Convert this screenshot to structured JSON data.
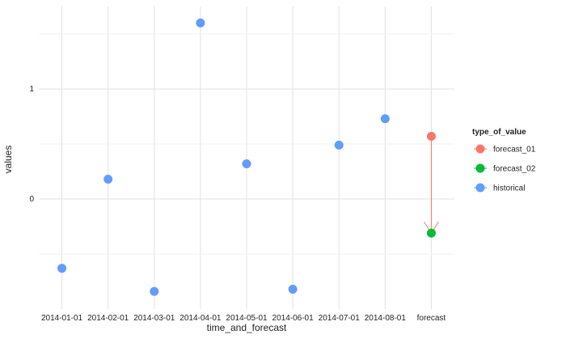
{
  "chart_data": {
    "type": "scatter",
    "xlabel": "time_and_forecast",
    "ylabel": "values",
    "categories": [
      "2014-01-01",
      "2014-02-01",
      "2014-03-01",
      "2014-04-01",
      "2014-05-01",
      "2014-06-01",
      "2014-07-01",
      "2014-08-01",
      "forecast"
    ],
    "y_ticks": [
      "0",
      "1"
    ],
    "y_tick_values": [
      0,
      1
    ],
    "ylim": [
      -1.0,
      1.75
    ],
    "grid": true,
    "series": [
      {
        "name": "historical",
        "color": "#619cff",
        "x": [
          "2014-01-01",
          "2014-02-01",
          "2014-03-01",
          "2014-04-01",
          "2014-05-01",
          "2014-06-01",
          "2014-07-01",
          "2014-08-01"
        ],
        "values": [
          -0.63,
          0.18,
          -0.84,
          1.6,
          0.32,
          -0.82,
          0.49,
          0.73
        ]
      },
      {
        "name": "forecast_01",
        "color": "#f8766d",
        "x": [
          "forecast"
        ],
        "values": [
          0.57
        ]
      },
      {
        "name": "forecast_02",
        "color": "#00ba38",
        "x": [
          "forecast"
        ],
        "values": [
          -0.31
        ]
      }
    ],
    "annotation": {
      "type": "arrow",
      "from": {
        "x": "forecast",
        "y": 0.57
      },
      "to": {
        "x": "forecast",
        "y": -0.31
      },
      "color": "#f8766d"
    },
    "legend": {
      "title": "type_of_value",
      "position": "right",
      "items": [
        "forecast_01",
        "forecast_02",
        "historical"
      ]
    }
  }
}
